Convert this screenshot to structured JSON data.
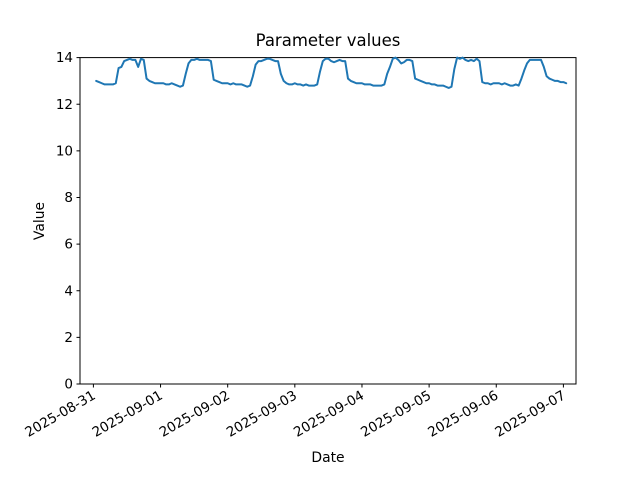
{
  "figure": {
    "background": "#ffffff",
    "title": "Parameter values"
  },
  "chart_data": {
    "type": "line",
    "title": "Parameter values",
    "xlabel": "Date",
    "ylabel": "Value",
    "legend": null,
    "grid": false,
    "line_color": "#1f77b4",
    "spine_color": "#000000",
    "text_color": "#000000",
    "ylim": [
      0,
      14
    ],
    "y_ticks": [
      0,
      2,
      4,
      6,
      8,
      10,
      12,
      14
    ],
    "x_unit": "hours since 2025-08-31 00:00",
    "x_tick_hours": [
      0,
      24,
      48,
      72,
      96,
      120,
      144,
      168
    ],
    "x_tick_labels": [
      "2025-08-31",
      "2025-09-01",
      "2025-09-02",
      "2025-09-03",
      "2025-09-04",
      "2025-09-05",
      "2025-09-06",
      "2025-09-07"
    ],
    "x_start_hour": 1,
    "x_interval_hours": 1,
    "values": [
      13.0,
      12.95,
      12.9,
      12.85,
      12.85,
      12.85,
      12.85,
      12.9,
      13.55,
      13.6,
      13.85,
      13.9,
      13.95,
      13.9,
      13.9,
      13.6,
      13.95,
      13.9,
      13.1,
      13.0,
      12.95,
      12.9,
      12.9,
      12.9,
      12.9,
      12.85,
      12.85,
      12.9,
      12.85,
      12.8,
      12.75,
      12.8,
      13.3,
      13.75,
      13.9,
      13.9,
      13.95,
      13.9,
      13.9,
      13.9,
      13.9,
      13.85,
      13.05,
      13.0,
      12.95,
      12.9,
      12.9,
      12.9,
      12.85,
      12.9,
      12.85,
      12.85,
      12.85,
      12.8,
      12.75,
      12.8,
      13.2,
      13.7,
      13.85,
      13.85,
      13.9,
      13.95,
      13.95,
      13.9,
      13.85,
      13.85,
      13.3,
      13.0,
      12.9,
      12.85,
      12.85,
      12.9,
      12.85,
      12.85,
      12.8,
      12.85,
      12.8,
      12.8,
      12.8,
      12.85,
      13.4,
      13.85,
      13.95,
      13.95,
      13.85,
      13.8,
      13.85,
      13.9,
      13.85,
      13.85,
      13.1,
      13.0,
      12.95,
      12.9,
      12.9,
      12.9,
      12.85,
      12.85,
      12.85,
      12.8,
      12.8,
      12.8,
      12.8,
      12.85,
      13.3,
      13.6,
      13.95,
      14.0,
      13.9,
      13.75,
      13.8,
      13.9,
      13.9,
      13.85,
      13.1,
      13.05,
      13.0,
      12.95,
      12.9,
      12.9,
      12.85,
      12.85,
      12.8,
      12.8,
      12.8,
      12.75,
      12.7,
      12.75,
      13.5,
      14.0,
      13.95,
      14.0,
      13.9,
      13.85,
      13.9,
      13.85,
      13.95,
      13.85,
      12.95,
      12.9,
      12.9,
      12.85,
      12.9,
      12.9,
      12.9,
      12.85,
      12.9,
      12.85,
      12.8,
      12.8,
      12.85,
      12.8,
      13.1,
      13.45,
      13.75,
      13.9,
      13.9,
      13.9,
      13.9,
      13.9,
      13.6,
      13.2,
      13.1,
      13.05,
      13.0,
      13.0,
      12.95,
      12.95,
      12.9
    ]
  }
}
